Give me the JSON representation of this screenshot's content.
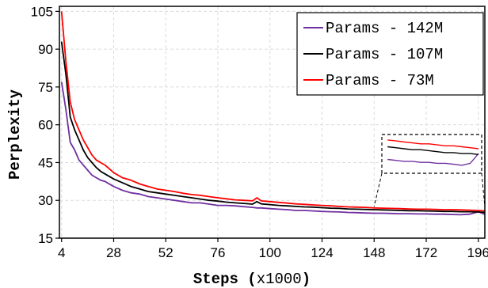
{
  "chart_data": {
    "type": "line",
    "title": "",
    "xlabel_bold": "Steps (",
    "xlabel_light": "x1000",
    "xlabel_close": ")",
    "ylabel": "Perplexity",
    "xlim": [
      3,
      199
    ],
    "ylim": [
      15,
      107
    ],
    "xticks": [
      4,
      28,
      52,
      76,
      100,
      124,
      148,
      172,
      196
    ],
    "yticks": [
      15,
      30,
      45,
      60,
      75,
      90,
      105
    ],
    "grid": true,
    "legend_position": "top-right",
    "inset": "zoomed view of steps 150-196",
    "x": [
      4,
      6,
      8,
      10,
      12,
      14,
      16,
      18,
      20,
      22,
      24,
      28,
      32,
      36,
      40,
      44,
      48,
      52,
      56,
      60,
      64,
      68,
      72,
      76,
      80,
      84,
      88,
      92,
      94,
      96,
      100,
      104,
      108,
      112,
      116,
      120,
      124,
      128,
      132,
      136,
      140,
      144,
      148,
      152,
      156,
      160,
      164,
      168,
      172,
      176,
      180,
      184,
      188,
      192,
      196,
      199
    ],
    "series": [
      {
        "name": "Params - 142M",
        "color": "#7030a0",
        "values": [
          77,
          66,
          53,
          50,
          46,
          44,
          42,
          40,
          39,
          38,
          37.5,
          35.5,
          34,
          33,
          32.5,
          31.5,
          31,
          30.5,
          30,
          29.5,
          29,
          29,
          28.5,
          28,
          28,
          27.8,
          27.5,
          27.2,
          27.0,
          27.0,
          26.7,
          26.5,
          26.3,
          26.0,
          26.0,
          25.8,
          25.6,
          25.5,
          25.4,
          25.2,
          25.1,
          25.0,
          24.9,
          24.9,
          24.8,
          24.7,
          24.7,
          24.6,
          24.6,
          24.5,
          24.5,
          24.4,
          24.3,
          24.5,
          25.5,
          24.4
        ]
      },
      {
        "name": "Params - 107M",
        "color": "#000000",
        "values": [
          93,
          80,
          63,
          58,
          54,
          50,
          47,
          45,
          43,
          41.5,
          40.5,
          38.5,
          37,
          35.5,
          34.5,
          33.5,
          33,
          32.5,
          32,
          31.5,
          31,
          30.5,
          30,
          29.7,
          29.3,
          29,
          28.8,
          28.5,
          29.5,
          28.6,
          28.3,
          28.0,
          27.8,
          27.6,
          27.4,
          27.3,
          27.1,
          26.9,
          26.8,
          26.6,
          26.5,
          26.4,
          26.3,
          26.2,
          26.1,
          26.0,
          25.9,
          25.9,
          25.8,
          25.7,
          25.6,
          25.6,
          25.5,
          25.5,
          25.4,
          25.2
        ]
      },
      {
        "name": "Params - 73M",
        "color": "#ff0000",
        "values": [
          105,
          85,
          69,
          62,
          58,
          54,
          51,
          48,
          46,
          45,
          44,
          41,
          39,
          38,
          36.5,
          35.5,
          34.5,
          34,
          33.5,
          32.8,
          32.3,
          32,
          31.5,
          31,
          30.6,
          30.2,
          30.0,
          29.8,
          31.0,
          29.8,
          29.5,
          29.2,
          28.9,
          28.6,
          28.4,
          28.2,
          28.0,
          27.8,
          27.6,
          27.4,
          27.3,
          27.2,
          27.0,
          26.9,
          26.8,
          26.7,
          26.6,
          26.5,
          26.5,
          26.4,
          26.3,
          26.3,
          26.2,
          26.1,
          26.0,
          25.8
        ]
      }
    ]
  }
}
